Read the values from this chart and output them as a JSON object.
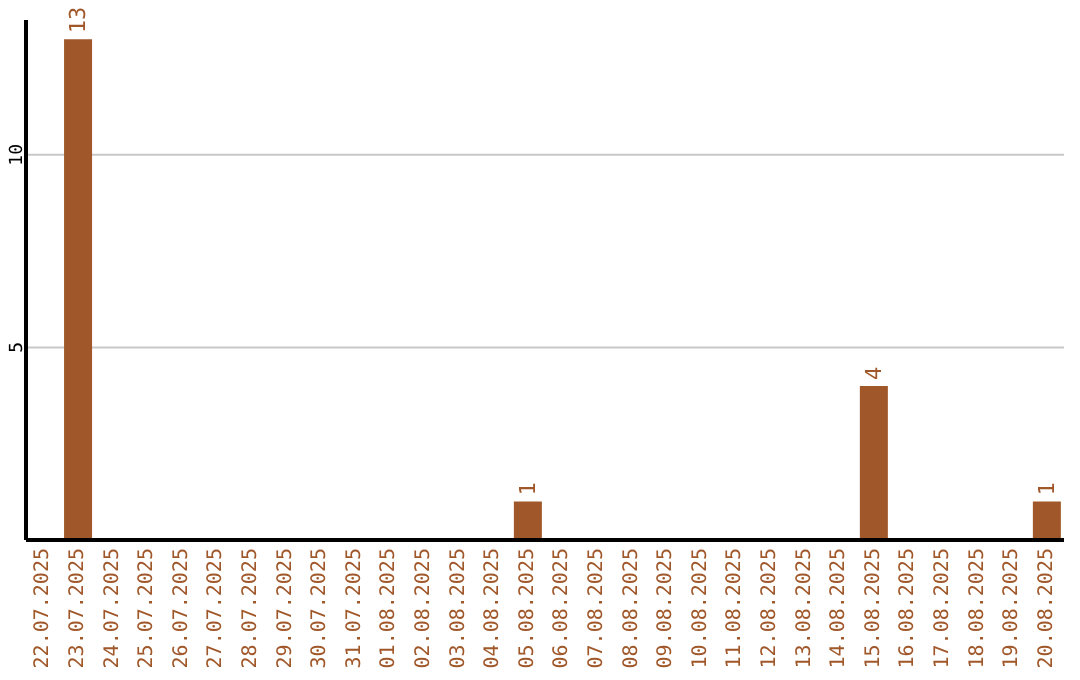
{
  "chart_data": {
    "type": "bar",
    "categories": [
      "22.07.2025",
      "23.07.2025",
      "24.07.2025",
      "25.07.2025",
      "26.07.2025",
      "27.07.2025",
      "28.07.2025",
      "29.07.2025",
      "30.07.2025",
      "31.07.2025",
      "01.08.2025",
      "02.08.2025",
      "03.08.2025",
      "04.08.2025",
      "05.08.2025",
      "06.08.2025",
      "07.08.2025",
      "08.08.2025",
      "09.08.2025",
      "10.08.2025",
      "11.08.2025",
      "12.08.2025",
      "13.08.2025",
      "14.08.2025",
      "15.08.2025",
      "16.08.2025",
      "17.08.2025",
      "18.08.2025",
      "19.08.2025",
      "20.08.2025"
    ],
    "values": [
      0,
      13,
      0,
      0,
      0,
      0,
      0,
      0,
      0,
      0,
      0,
      0,
      0,
      0,
      1,
      0,
      0,
      0,
      0,
      0,
      0,
      0,
      0,
      0,
      4,
      0,
      0,
      0,
      0,
      1
    ],
    "value_labels": [
      null,
      "13",
      null,
      null,
      null,
      null,
      null,
      null,
      null,
      null,
      null,
      null,
      null,
      null,
      "1",
      null,
      null,
      null,
      null,
      null,
      null,
      null,
      null,
      null,
      "4",
      null,
      null,
      null,
      null,
      "1"
    ],
    "color": "#a0582a",
    "ylim": [
      0,
      13.5
    ],
    "yticks": [
      5,
      10
    ],
    "grid": "y"
  }
}
